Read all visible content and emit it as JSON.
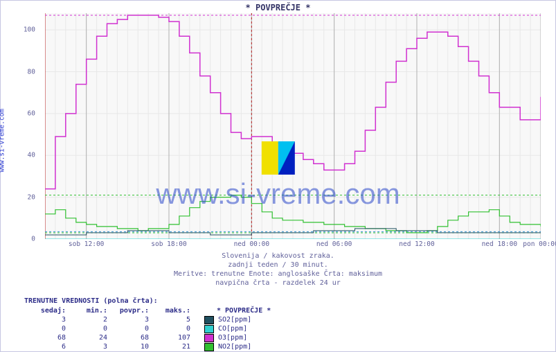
{
  "title": "* POVPREČJE *",
  "ylabel": "www.si-vreme.com",
  "watermark_text": "www.si-vreme.com",
  "watermark_logo_colors": {
    "left": "#f0e000",
    "right_top": "#00c0f0",
    "right_bottom": "#0020c0"
  },
  "chart": {
    "type": "line",
    "background_color": "#ffffff",
    "plot_background": "#f8f8f8",
    "grid_color": "#e8e8e8",
    "axis_color": "#b82020",
    "font_color": "#5f5f99",
    "label_fontsize": 9.5,
    "title_fontsize": 12,
    "xlim": [
      0,
      48
    ],
    "ylim": [
      0,
      108
    ],
    "ytick_step": 20,
    "yticks": [
      0,
      20,
      40,
      60,
      80,
      100
    ],
    "xticks": [
      {
        "pos": 4,
        "label": "sob 12:00"
      },
      {
        "pos": 12,
        "label": "sob 18:00"
      },
      {
        "pos": 20,
        "label": "ned 00:00"
      },
      {
        "pos": 28,
        "label": "ned 06:00"
      },
      {
        "pos": 36,
        "label": "ned 12:00"
      },
      {
        "pos": 44,
        "label": "ned 18:00"
      },
      {
        "pos": 48,
        "label": "pon 00:00"
      }
    ],
    "max_line": {
      "y": 107,
      "color": "#d030d0",
      "dash": "3,3"
    },
    "min_line": {
      "y": 3.5,
      "color": "#3090d0",
      "dash": "3,3"
    },
    "n2_max_line": {
      "y": 21,
      "color": "#30c030",
      "dash": "3,3"
    },
    "n2_min_line": {
      "y": 3,
      "color": "#30c030",
      "dash": "3,3"
    },
    "vline": {
      "x": 20,
      "color": "#b82020",
      "dash": "3,3"
    },
    "series": [
      {
        "name": "O3[ppm]",
        "color": "#d030d0",
        "width": 1.5,
        "step": true,
        "data": [
          [
            0,
            24
          ],
          [
            1,
            24
          ],
          [
            1,
            49
          ],
          [
            2,
            49
          ],
          [
            2,
            60
          ],
          [
            3,
            60
          ],
          [
            3,
            74
          ],
          [
            4,
            74
          ],
          [
            4,
            86
          ],
          [
            5,
            86
          ],
          [
            5,
            97
          ],
          [
            6,
            97
          ],
          [
            6,
            103
          ],
          [
            7,
            103
          ],
          [
            7,
            105
          ],
          [
            8,
            105
          ],
          [
            8,
            107
          ],
          [
            11,
            107
          ],
          [
            11,
            106
          ],
          [
            12,
            106
          ],
          [
            12,
            104
          ],
          [
            13,
            104
          ],
          [
            13,
            97
          ],
          [
            14,
            97
          ],
          [
            14,
            89
          ],
          [
            15,
            89
          ],
          [
            15,
            78
          ],
          [
            16,
            78
          ],
          [
            16,
            70
          ],
          [
            17,
            70
          ],
          [
            17,
            60
          ],
          [
            18,
            60
          ],
          [
            18,
            51
          ],
          [
            19,
            51
          ],
          [
            19,
            48
          ],
          [
            20,
            48
          ],
          [
            20,
            49
          ],
          [
            22,
            49
          ],
          [
            22,
            46
          ],
          [
            23,
            46
          ],
          [
            23,
            41
          ],
          [
            25,
            41
          ],
          [
            25,
            38
          ],
          [
            26,
            38
          ],
          [
            26,
            36
          ],
          [
            27,
            36
          ],
          [
            27,
            33
          ],
          [
            29,
            33
          ],
          [
            29,
            36
          ],
          [
            30,
            36
          ],
          [
            30,
            42
          ],
          [
            31,
            42
          ],
          [
            31,
            52
          ],
          [
            32,
            52
          ],
          [
            32,
            63
          ],
          [
            33,
            63
          ],
          [
            33,
            75
          ],
          [
            34,
            75
          ],
          [
            34,
            85
          ],
          [
            35,
            85
          ],
          [
            35,
            91
          ],
          [
            36,
            91
          ],
          [
            36,
            96
          ],
          [
            37,
            96
          ],
          [
            37,
            99
          ],
          [
            39,
            99
          ],
          [
            39,
            97
          ],
          [
            40,
            97
          ],
          [
            40,
            92
          ],
          [
            41,
            92
          ],
          [
            41,
            85
          ],
          [
            42,
            85
          ],
          [
            42,
            78
          ],
          [
            43,
            78
          ],
          [
            43,
            70
          ],
          [
            44,
            70
          ],
          [
            44,
            63
          ],
          [
            46,
            63
          ],
          [
            46,
            57
          ],
          [
            48,
            57
          ],
          [
            48,
            68
          ]
        ]
      },
      {
        "name": "NO2[ppm]",
        "color": "#30c030",
        "width": 1.2,
        "step": true,
        "data": [
          [
            0,
            12
          ],
          [
            1,
            12
          ],
          [
            1,
            14
          ],
          [
            2,
            14
          ],
          [
            2,
            10
          ],
          [
            3,
            10
          ],
          [
            3,
            8
          ],
          [
            4,
            8
          ],
          [
            4,
            7
          ],
          [
            5,
            7
          ],
          [
            5,
            6
          ],
          [
            7,
            6
          ],
          [
            7,
            5
          ],
          [
            9,
            5
          ],
          [
            9,
            4
          ],
          [
            10,
            4
          ],
          [
            10,
            5
          ],
          [
            12,
            5
          ],
          [
            12,
            7
          ],
          [
            13,
            7
          ],
          [
            13,
            11
          ],
          [
            14,
            11
          ],
          [
            14,
            15
          ],
          [
            15,
            15
          ],
          [
            15,
            18
          ],
          [
            16,
            18
          ],
          [
            16,
            20
          ],
          [
            18,
            20
          ],
          [
            18,
            21
          ],
          [
            19,
            21
          ],
          [
            19,
            20
          ],
          [
            20,
            20
          ],
          [
            20,
            17
          ],
          [
            21,
            17
          ],
          [
            21,
            13
          ],
          [
            22,
            13
          ],
          [
            22,
            10
          ],
          [
            23,
            10
          ],
          [
            23,
            9
          ],
          [
            25,
            9
          ],
          [
            25,
            8
          ],
          [
            27,
            8
          ],
          [
            27,
            7
          ],
          [
            29,
            7
          ],
          [
            29,
            6
          ],
          [
            31,
            6
          ],
          [
            31,
            5
          ],
          [
            33,
            5
          ],
          [
            33,
            4
          ],
          [
            35,
            4
          ],
          [
            35,
            3
          ],
          [
            37,
            3
          ],
          [
            37,
            4
          ],
          [
            38,
            4
          ],
          [
            38,
            6
          ],
          [
            39,
            6
          ],
          [
            39,
            9
          ],
          [
            40,
            9
          ],
          [
            40,
            11
          ],
          [
            41,
            11
          ],
          [
            41,
            13
          ],
          [
            43,
            13
          ],
          [
            43,
            14
          ],
          [
            44,
            14
          ],
          [
            44,
            11
          ],
          [
            45,
            11
          ],
          [
            45,
            8
          ],
          [
            46,
            8
          ],
          [
            46,
            7
          ],
          [
            48,
            7
          ],
          [
            48,
            6
          ]
        ]
      },
      {
        "name": "SO2[ppm]",
        "color": "#205060",
        "width": 1,
        "step": true,
        "data": [
          [
            0,
            2
          ],
          [
            4,
            2
          ],
          [
            4,
            3
          ],
          [
            8,
            3
          ],
          [
            8,
            4
          ],
          [
            12,
            4
          ],
          [
            12,
            3
          ],
          [
            16,
            3
          ],
          [
            16,
            2
          ],
          [
            20,
            2
          ],
          [
            20,
            3
          ],
          [
            26,
            3
          ],
          [
            26,
            4
          ],
          [
            30,
            4
          ],
          [
            30,
            5
          ],
          [
            34,
            5
          ],
          [
            34,
            4
          ],
          [
            38,
            4
          ],
          [
            38,
            3
          ],
          [
            44,
            3
          ],
          [
            44,
            3
          ],
          [
            48,
            3
          ]
        ]
      },
      {
        "name": "CO[ppm]",
        "color": "#30d0d0",
        "width": 1,
        "step": true,
        "data": [
          [
            0,
            0
          ],
          [
            48,
            0
          ]
        ]
      }
    ]
  },
  "captions": [
    "Slovenija / kakovost zraka.",
    "zadnji teden / 30 minut.",
    "Meritve: trenutne  Enote: anglosaške  Črta: maksimum",
    "navpična črta - razdelek 24 ur"
  ],
  "table": {
    "title": "TRENUTNE VREDNOSTI (polna črta):",
    "columns": [
      "sedaj:",
      "min.:",
      "povpr.:",
      "maks.:"
    ],
    "legend_title": "* POVPREČJE *",
    "rows": [
      {
        "vals": [
          "3",
          "2",
          "3",
          "5"
        ],
        "color": "#205060",
        "label": "SO2[ppm]"
      },
      {
        "vals": [
          "0",
          "0",
          "0",
          "0"
        ],
        "color": "#30d0d0",
        "label": "CO[ppm]"
      },
      {
        "vals": [
          "68",
          "24",
          "68",
          "107"
        ],
        "color": "#d030d0",
        "label": "O3[ppm]"
      },
      {
        "vals": [
          "6",
          "3",
          "10",
          "21"
        ],
        "color": "#30c030",
        "label": "NO2[ppm]"
      }
    ]
  }
}
